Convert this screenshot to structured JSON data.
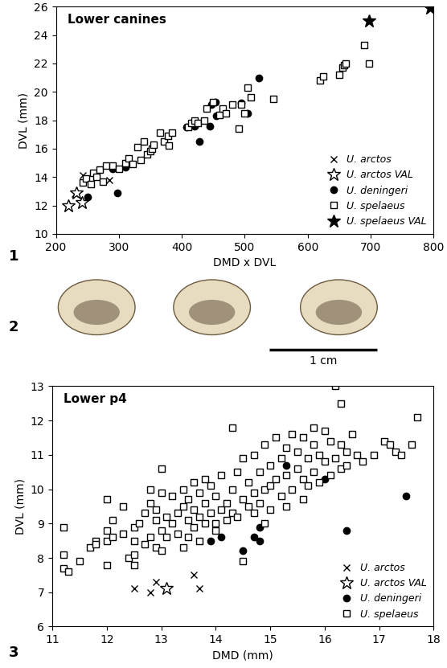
{
  "chart_data": [
    {
      "type": "scatter",
      "panel_label": "1",
      "title": "Lower canines",
      "x_label": "DMD x DVL",
      "y_label": "DVL (mm)",
      "xlim": [
        200,
        800
      ],
      "xticks": [
        200,
        300,
        400,
        500,
        600,
        700,
        800
      ],
      "ylim": [
        10,
        26
      ],
      "yticks": [
        10,
        12,
        14,
        16,
        18,
        20,
        22,
        24,
        26
      ],
      "legend": "lower right",
      "grid": false,
      "series": [
        {
          "name": "U. arctos",
          "color": "#000000",
          "marker": "x",
          "x": [
            230,
            243,
            285
          ],
          "values": [
            12.8,
            14.1,
            13.8
          ]
        },
        {
          "name": "U. arctos VAL",
          "color": "#000000",
          "marker": "star_open",
          "x": [
            220,
            233,
            242
          ],
          "values": [
            12.0,
            12.9,
            12.2
          ]
        },
        {
          "name": "U. deningeri",
          "color": "#000000",
          "marker": "circle",
          "x": [
            250,
            290,
            298,
            310,
            408,
            420,
            428,
            445,
            447,
            453,
            455,
            495,
            505,
            523
          ],
          "values": [
            12.6,
            14.6,
            12.9,
            14.7,
            17.5,
            17.6,
            16.5,
            17.6,
            19.1,
            19.3,
            18.3,
            19.2,
            18.5,
            21.0
          ]
        },
        {
          "name": "U. spelaeus",
          "color": "#000000",
          "marker": "square_open",
          "x": [
            243,
            248,
            255,
            260,
            265,
            270,
            275,
            280,
            290,
            300,
            310,
            315,
            322,
            330,
            335,
            340,
            345,
            350,
            352,
            355,
            365,
            372,
            378,
            380,
            385,
            410,
            415,
            420,
            425,
            435,
            440,
            450,
            460,
            465,
            470,
            480,
            490,
            495,
            500,
            505,
            510,
            545,
            620,
            625,
            650,
            655,
            658,
            660,
            690,
            697
          ],
          "values": [
            13.6,
            13.9,
            13.5,
            14.3,
            14.0,
            14.5,
            13.7,
            14.8,
            14.8,
            14.6,
            15.0,
            15.3,
            14.9,
            16.1,
            15.2,
            16.5,
            15.6,
            15.8,
            16.0,
            16.3,
            17.1,
            16.5,
            16.9,
            16.2,
            17.1,
            17.5,
            17.8,
            18.0,
            17.8,
            18.0,
            18.8,
            19.3,
            18.4,
            18.8,
            18.5,
            19.1,
            17.4,
            19.1,
            18.5,
            20.3,
            19.6,
            19.5,
            20.8,
            21.1,
            21.2,
            21.7,
            21.9,
            22.0,
            23.3,
            22.0
          ]
        },
        {
          "name": "U. spelaeus VAL",
          "color": "#000000",
          "marker": "star",
          "x": [
            697,
            795
          ],
          "values": [
            25.0,
            25.9
          ]
        }
      ]
    },
    {
      "type": "scatter",
      "panel_label": "3",
      "title": "Lower p4",
      "x_label": "DMD (mm)",
      "y_label": "DVL (mm)",
      "xlim": [
        11,
        18
      ],
      "xticks": [
        11,
        12,
        13,
        14,
        15,
        16,
        17,
        18
      ],
      "ylim": [
        6,
        13
      ],
      "yticks": [
        6,
        7,
        8,
        9,
        10,
        11,
        12,
        13
      ],
      "legend": "lower right",
      "grid": false,
      "series": [
        {
          "name": "U. arctos",
          "color": "#000000",
          "marker": "x",
          "x": [
            12.5,
            12.8,
            12.9,
            13.6,
            13.7
          ],
          "values": [
            7.1,
            7.0,
            7.3,
            7.5,
            7.1
          ]
        },
        {
          "name": "U. arctos VAL",
          "color": "#000000",
          "marker": "star_open",
          "x": [
            13.1
          ],
          "values": [
            7.1
          ]
        },
        {
          "name": "U. deningeri",
          "color": "#000000",
          "marker": "circle",
          "x": [
            13.9,
            14.1,
            14.5,
            14.7,
            14.8,
            14.8,
            15.3,
            16.0,
            16.4,
            17.5
          ],
          "values": [
            8.5,
            8.6,
            8.2,
            8.6,
            8.5,
            8.9,
            10.7,
            10.3,
            8.8,
            9.8
          ]
        },
        {
          "name": "U. spelaeus",
          "color": "#000000",
          "marker": "square_open",
          "x": [
            11.2,
            11.2,
            11.2,
            11.3,
            11.5,
            11.7,
            11.8,
            11.8,
            12.0,
            12.0,
            12.0,
            12.0,
            12.1,
            12.1,
            12.3,
            12.3,
            12.4,
            12.5,
            12.5,
            12.5,
            12.5,
            12.6,
            12.7,
            12.7,
            12.8,
            12.8,
            12.8,
            12.9,
            12.9,
            12.9,
            13.0,
            13.0,
            13.0,
            13.0,
            13.1,
            13.1,
            13.2,
            13.2,
            13.3,
            13.3,
            13.4,
            13.4,
            13.4,
            13.5,
            13.5,
            13.5,
            13.6,
            13.6,
            13.6,
            13.7,
            13.7,
            13.7,
            13.8,
            13.8,
            13.8,
            13.9,
            13.9,
            14.0,
            14.0,
            14.0,
            14.1,
            14.1,
            14.2,
            14.2,
            14.3,
            14.3,
            14.3,
            14.4,
            14.4,
            14.5,
            14.5,
            14.5,
            14.6,
            14.6,
            14.7,
            14.7,
            14.7,
            14.8,
            14.8,
            14.9,
            14.9,
            14.9,
            15.0,
            15.0,
            15.0,
            15.1,
            15.1,
            15.2,
            15.2,
            15.3,
            15.3,
            15.3,
            15.4,
            15.4,
            15.5,
            15.5,
            15.6,
            15.6,
            15.6,
            15.7,
            15.7,
            15.8,
            15.8,
            15.8,
            15.9,
            15.9,
            16.0,
            16.0,
            16.1,
            16.1,
            16.2,
            16.2,
            16.3,
            16.3,
            16.3,
            16.4,
            16.4,
            16.5,
            16.6,
            16.7,
            16.9,
            17.1,
            17.2,
            17.3,
            17.4,
            17.6,
            17.7
          ],
          "values": [
            8.9,
            8.1,
            7.7,
            7.6,
            7.9,
            8.3,
            8.5,
            8.4,
            9.7,
            8.8,
            8.5,
            7.8,
            8.6,
            9.1,
            9.5,
            8.7,
            8.0,
            8.5,
            8.9,
            8.1,
            7.8,
            9.0,
            9.3,
            8.4,
            10.0,
            9.6,
            8.6,
            9.4,
            9.1,
            8.3,
            10.6,
            9.9,
            8.8,
            8.2,
            9.2,
            8.6,
            9.8,
            9.0,
            9.3,
            8.7,
            10.0,
            9.5,
            8.3,
            9.7,
            9.1,
            8.6,
            10.2,
            9.4,
            8.9,
            9.9,
            9.2,
            8.5,
            10.3,
            9.6,
            9.0,
            10.1,
            9.3,
            9.8,
            9.0,
            8.8,
            10.4,
            9.4,
            9.6,
            9.1,
            11.8,
            10.0,
            9.3,
            10.5,
            9.2,
            10.9,
            9.7,
            7.9,
            10.2,
            9.5,
            11.0,
            9.9,
            9.3,
            10.5,
            9.6,
            11.3,
            10.0,
            9.0,
            10.7,
            10.1,
            9.4,
            11.5,
            10.3,
            10.9,
            9.8,
            11.2,
            10.4,
            9.5,
            11.6,
            10.0,
            11.1,
            10.6,
            11.5,
            10.3,
            9.7,
            10.9,
            10.1,
            11.8,
            11.3,
            10.5,
            11.0,
            10.2,
            11.7,
            10.8,
            11.4,
            10.4,
            13.0,
            10.9,
            12.5,
            11.3,
            10.6,
            11.1,
            10.7,
            11.6,
            11.0,
            10.8,
            11.0,
            11.4,
            11.3,
            11.1,
            11.0,
            11.3,
            12.1
          ]
        }
      ]
    }
  ],
  "photo_panel": {
    "label": "2",
    "scale_bar": "1 cm"
  }
}
